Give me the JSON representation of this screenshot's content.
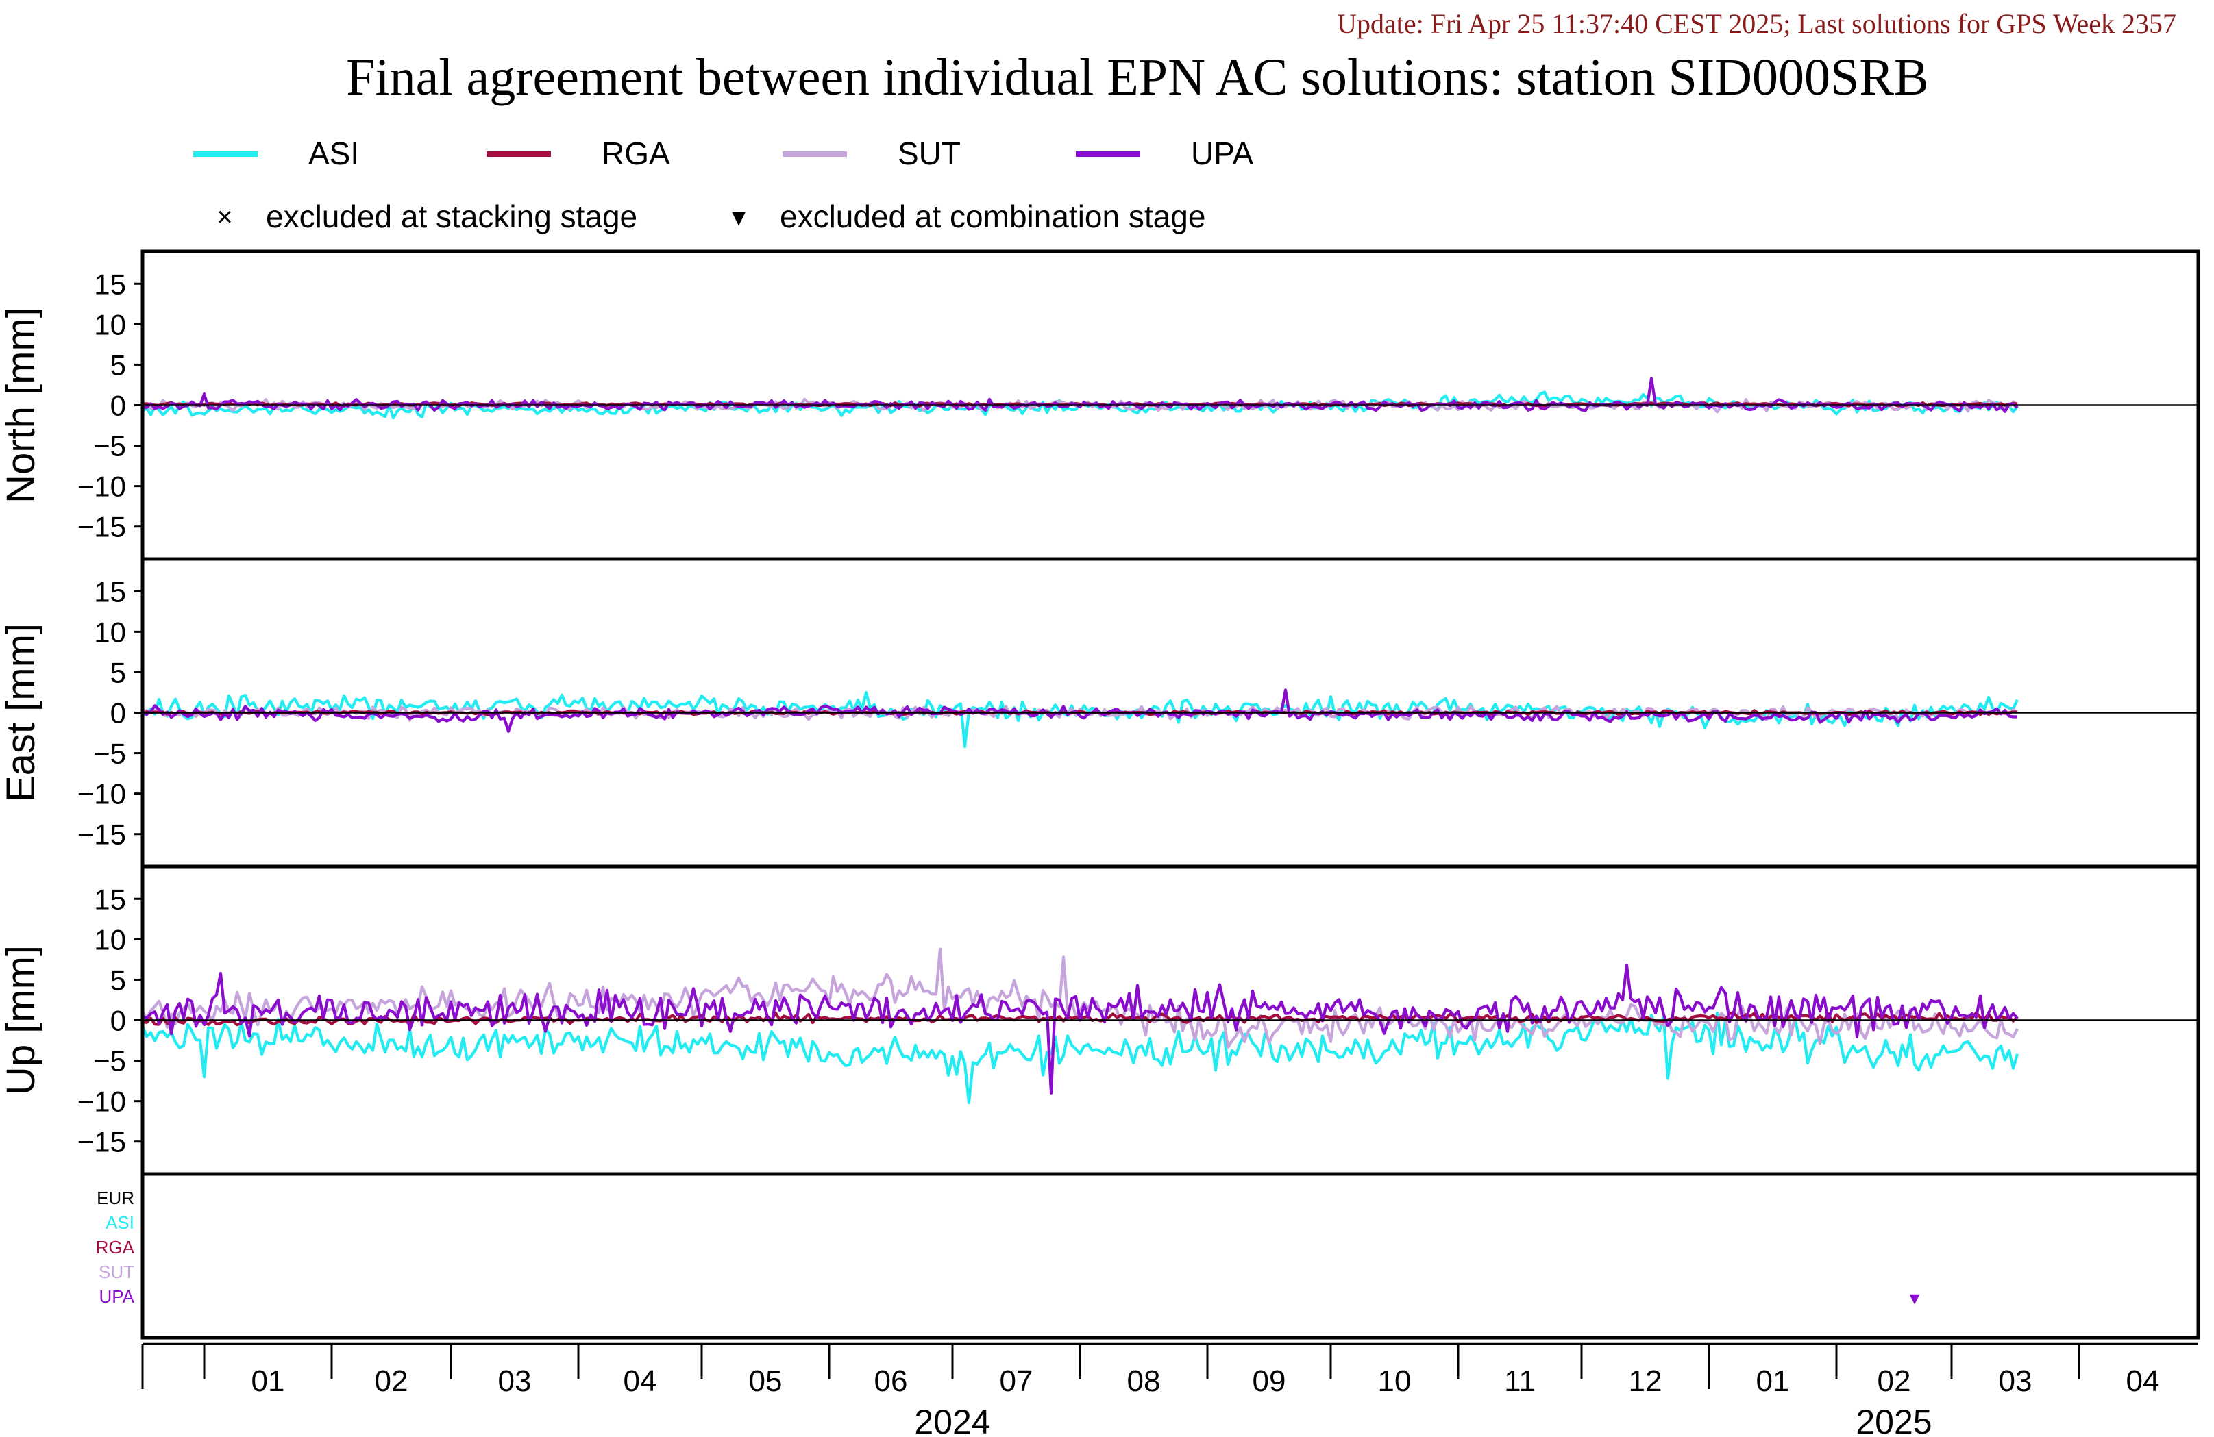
{
  "header": {
    "update_text": "Update: Fri Apr 25 11:37:40 CEST 2025; Last solutions for GPS Week 2357",
    "title": "Final agreement between individual EPN AC solutions: station SID000SRB"
  },
  "colors": {
    "ASI": "#22ecf2",
    "RGA": "#a50d3f",
    "SUT": "#c6a4dc",
    "UPA": "#8a0ccc",
    "EUR": "#000000",
    "update_text": "#8b1b1b"
  },
  "legend": {
    "series": [
      {
        "key": "ASI",
        "label": "ASI"
      },
      {
        "key": "RGA",
        "label": "RGA"
      },
      {
        "key": "SUT",
        "label": "SUT"
      },
      {
        "key": "UPA",
        "label": "UPA"
      }
    ],
    "markers": [
      {
        "symbol": "×",
        "label": "excluded at stacking stage"
      },
      {
        "symbol": "▾",
        "label": "excluded at combination stage"
      }
    ]
  },
  "chart_data": {
    "type": "line",
    "x_axis": {
      "range": [
        "2023-12-17",
        "2025-04-30"
      ],
      "month_ticks": [
        "2024-01-01",
        "2024-02-01",
        "2024-03-01",
        "2024-04-01",
        "2024-05-01",
        "2024-06-01",
        "2024-07-01",
        "2024-08-01",
        "2024-09-01",
        "2024-10-01",
        "2024-11-01",
        "2024-12-01",
        "2025-01-01",
        "2025-02-01",
        "2025-03-01",
        "2025-04-01"
      ],
      "month_labels": [
        "01",
        "02",
        "03",
        "04",
        "05",
        "06",
        "07",
        "08",
        "09",
        "10",
        "11",
        "12",
        "01",
        "02",
        "03",
        "04"
      ],
      "year_labels": [
        {
          "text": "2024",
          "center": "2024-07-01"
        },
        {
          "text": "2025",
          "center": "2025-02-15"
        }
      ],
      "year_boundary": "2025-01-01",
      "data_end": "2025-03-17"
    },
    "panels": [
      {
        "ylabel": "North [mm]",
        "ylim": [
          -19,
          19
        ],
        "yticks": [
          15,
          10,
          5,
          0,
          -5,
          -10,
          -15
        ],
        "series": [
          {
            "name": "ASI",
            "knots": [
              [
                "2023-12-17",
                -0.6
              ],
              [
                "2024-03-01",
                -0.6
              ],
              [
                "2024-06-01",
                -0.4
              ],
              [
                "2024-09-01",
                -0.3
              ],
              [
                "2024-11-15",
                0.4
              ],
              [
                "2024-12-15",
                0.6
              ],
              [
                "2025-01-20",
                -0.2
              ],
              [
                "2025-03-17",
                -0.2
              ]
            ],
            "noise": 0.55,
            "spikes": [
              [
                "2024-11-22",
                1.6
              ]
            ]
          },
          {
            "name": "SUT",
            "knots": [
              [
                "2023-12-17",
                0.0
              ],
              [
                "2025-03-17",
                0.0
              ]
            ],
            "noise": 0.4,
            "spikes": []
          },
          {
            "name": "RGA",
            "knots": [
              [
                "2023-12-17",
                0.1
              ],
              [
                "2025-03-17",
                0.1
              ]
            ],
            "noise": 0.12,
            "spikes": []
          },
          {
            "name": "UPA",
            "knots": [
              [
                "2023-12-17",
                0.0
              ],
              [
                "2025-03-17",
                0.0
              ]
            ],
            "noise": 0.4,
            "spikes": [
              [
                "2024-01-01",
                1.4
              ],
              [
                "2024-12-18",
                3.3
              ]
            ]
          }
        ]
      },
      {
        "ylabel": "East [mm]",
        "ylim": [
          -19,
          19
        ],
        "yticks": [
          15,
          10,
          5,
          0,
          -5,
          -10,
          -15
        ],
        "series": [
          {
            "name": "ASI",
            "knots": [
              [
                "2023-12-17",
                0.3
              ],
              [
                "2024-02-01",
                1.0
              ],
              [
                "2024-05-01",
                0.8
              ],
              [
                "2024-08-01",
                0.2
              ],
              [
                "2024-11-01",
                0.6
              ],
              [
                "2025-01-15",
                -0.6
              ],
              [
                "2025-02-15",
                -0.5
              ],
              [
                "2025-03-17",
                1.2
              ]
            ],
            "noise": 0.9,
            "spikes": [
              [
                "2024-07-04",
                -4.2
              ],
              [
                "2024-06-10",
                2.5
              ]
            ]
          },
          {
            "name": "SUT",
            "knots": [
              [
                "2023-12-17",
                0.0
              ],
              [
                "2025-03-17",
                0.0
              ]
            ],
            "noise": 0.5,
            "spikes": []
          },
          {
            "name": "RGA",
            "knots": [
              [
                "2023-12-17",
                0.0
              ],
              [
                "2025-03-17",
                0.0
              ]
            ],
            "noise": 0.15,
            "spikes": []
          },
          {
            "name": "UPA",
            "knots": [
              [
                "2023-12-17",
                0.0
              ],
              [
                "2024-03-01",
                -0.4
              ],
              [
                "2024-06-01",
                0.2
              ],
              [
                "2025-02-01",
                -0.6
              ],
              [
                "2025-03-17",
                -0.2
              ]
            ],
            "noise": 0.5,
            "spikes": [
              [
                "2024-09-20",
                2.8
              ],
              [
                "2024-03-15",
                -2.3
              ]
            ]
          }
        ]
      },
      {
        "ylabel": "Up [mm]",
        "ylim": [
          -19,
          19
        ],
        "yticks": [
          15,
          10,
          5,
          0,
          -5,
          -10,
          -15
        ],
        "series": [
          {
            "name": "ASI",
            "knots": [
              [
                "2023-12-17",
                -1.5
              ],
              [
                "2024-02-15",
                -2.8
              ],
              [
                "2024-05-01",
                -3.0
              ],
              [
                "2024-07-01",
                -4.5
              ],
              [
                "2024-08-15",
                -3.6
              ],
              [
                "2024-10-15",
                -3.4
              ],
              [
                "2024-12-01",
                -1.0
              ],
              [
                "2025-01-15",
                -2.2
              ],
              [
                "2025-02-15",
                -4.2
              ],
              [
                "2025-03-17",
                -3.8
              ]
            ],
            "noise": 1.6,
            "spikes": [
              [
                "2024-07-05",
                -10.2
              ],
              [
                "2024-01-01",
                -7.0
              ],
              [
                "2024-12-22",
                -7.2
              ]
            ]
          },
          {
            "name": "SUT",
            "knots": [
              [
                "2023-12-17",
                1.0
              ],
              [
                "2024-03-01",
                1.6
              ],
              [
                "2024-06-10",
                4.0
              ],
              [
                "2024-07-15",
                3.0
              ],
              [
                "2024-09-01",
                -1.0
              ],
              [
                "2024-12-01",
                -0.2
              ],
              [
                "2025-03-17",
                -0.6
              ]
            ],
            "noise": 1.4,
            "spikes": [
              [
                "2024-06-28",
                8.8
              ],
              [
                "2024-07-28",
                7.8
              ]
            ]
          },
          {
            "name": "RGA",
            "knots": [
              [
                "2023-12-17",
                -0.2
              ],
              [
                "2024-06-01",
                0.3
              ],
              [
                "2025-03-17",
                0.3
              ]
            ],
            "noise": 0.35,
            "spikes": []
          },
          {
            "name": "UPA",
            "knots": [
              [
                "2023-12-17",
                0.5
              ],
              [
                "2024-05-01",
                1.2
              ],
              [
                "2024-08-15",
                1.6
              ],
              [
                "2024-11-01",
                0.6
              ],
              [
                "2024-12-20",
                2.0
              ],
              [
                "2025-03-17",
                0.4
              ]
            ],
            "noise": 1.6,
            "spikes": [
              [
                "2024-01-05",
                5.8
              ],
              [
                "2024-12-12",
                6.8
              ],
              [
                "2024-07-25",
                -9.0
              ]
            ]
          }
        ]
      }
    ],
    "exclusion_panel": {
      "row_labels": [
        "EUR",
        "ASI",
        "RGA",
        "SUT",
        "UPA"
      ],
      "markers": [
        {
          "series": "UPA",
          "date": "2025-02-20",
          "type": "excluded at combination stage",
          "symbol": "▾"
        }
      ]
    }
  }
}
